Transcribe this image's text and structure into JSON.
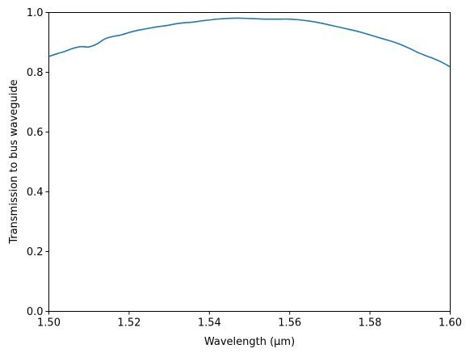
{
  "chart_data": {
    "type": "line",
    "title": "",
    "xlabel": "Wavelength (μm)",
    "ylabel": "Transmission to bus waveguide",
    "xlim": [
      1.5,
      1.6
    ],
    "ylim": [
      0.0,
      1.0
    ],
    "grid": false,
    "legend": "none",
    "x_ticks": [
      "1.50",
      "1.52",
      "1.54",
      "1.56",
      "1.58",
      "1.60"
    ],
    "y_ticks": [
      "0.0",
      "0.2",
      "0.4",
      "0.6",
      "0.8",
      "1.0"
    ],
    "series": [
      {
        "color": "#1f77b4",
        "x": [
          1.5,
          1.502,
          1.504,
          1.506,
          1.508,
          1.51,
          1.512,
          1.514,
          1.516,
          1.518,
          1.52,
          1.522,
          1.524,
          1.526,
          1.528,
          1.53,
          1.532,
          1.534,
          1.536,
          1.538,
          1.54,
          1.542,
          1.544,
          1.546,
          1.548,
          1.55,
          1.552,
          1.554,
          1.556,
          1.558,
          1.56,
          1.562,
          1.564,
          1.566,
          1.568,
          1.57,
          1.572,
          1.574,
          1.576,
          1.578,
          1.58,
          1.582,
          1.584,
          1.586,
          1.588,
          1.59,
          1.592,
          1.594,
          1.596,
          1.598,
          1.6
        ],
        "y": [
          0.853,
          0.862,
          0.87,
          0.88,
          0.886,
          0.885,
          0.895,
          0.912,
          0.92,
          0.925,
          0.933,
          0.94,
          0.945,
          0.95,
          0.954,
          0.958,
          0.963,
          0.966,
          0.968,
          0.972,
          0.975,
          0.978,
          0.98,
          0.981,
          0.981,
          0.98,
          0.979,
          0.978,
          0.978,
          0.978,
          0.978,
          0.976,
          0.973,
          0.969,
          0.964,
          0.958,
          0.952,
          0.946,
          0.94,
          0.933,
          0.925,
          0.917,
          0.909,
          0.901,
          0.891,
          0.879,
          0.866,
          0.855,
          0.845,
          0.833,
          0.818
        ]
      }
    ]
  }
}
